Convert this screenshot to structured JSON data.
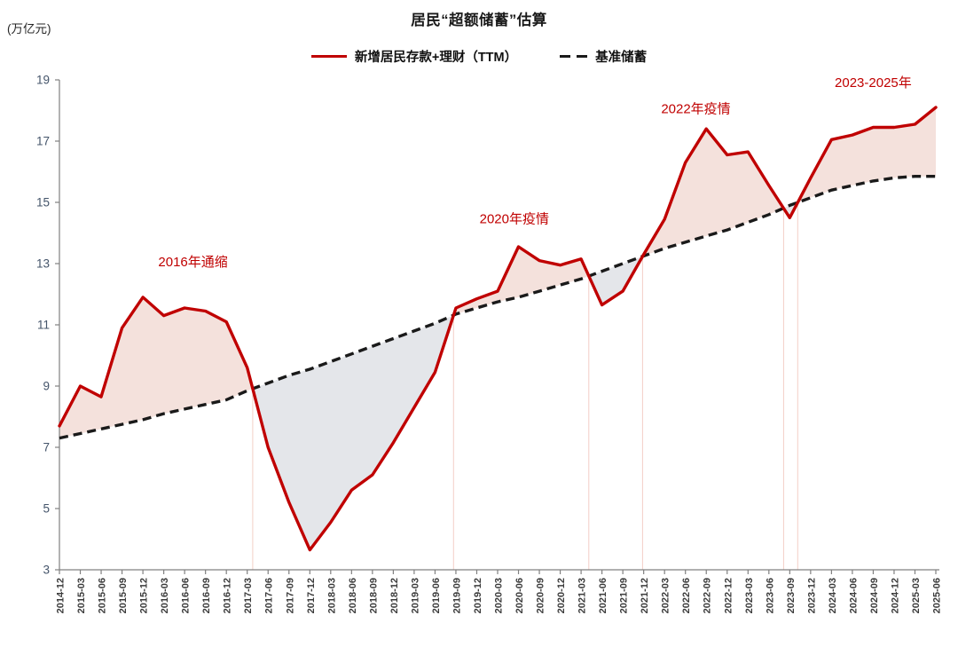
{
  "header": {
    "unit_label": "(万亿元)",
    "title": "居民“超额储蓄”估算"
  },
  "legend": [
    {
      "label": "新增居民存款+理财（TTM）",
      "swatch": "solid-red-line"
    },
    {
      "label": "基准储蓄",
      "swatch": "dashed-black-line"
    }
  ],
  "chart_data": {
    "type": "line",
    "title": "居民“超额储蓄”估算",
    "unit_label": "(万亿元)",
    "ylim": [
      3,
      19
    ],
    "yticks": [
      3,
      5,
      7,
      9,
      11,
      13,
      15,
      17,
      19
    ],
    "grid": false,
    "legend_position": "top",
    "categories": [
      "2014-12",
      "2015-03",
      "2015-06",
      "2015-09",
      "2015-12",
      "2016-03",
      "2016-06",
      "2016-09",
      "2016-12",
      "2017-03",
      "2017-06",
      "2017-09",
      "2017-12",
      "2018-03",
      "2018-06",
      "2018-09",
      "2018-12",
      "2019-03",
      "2019-06",
      "2019-09",
      "2019-12",
      "2020-03",
      "2020-06",
      "2020-09",
      "2020-12",
      "2021-03",
      "2021-06",
      "2021-09",
      "2021-12",
      "2022-03",
      "2022-06",
      "2022-09",
      "2022-12",
      "2023-03",
      "2023-06",
      "2023-09",
      "2023-12",
      "2024-03",
      "2024-06",
      "2024-09",
      "2024-12",
      "2025-03",
      "2025-06"
    ],
    "series": [
      {
        "name": "新增居民存款+理财（TTM）",
        "color": "#c00000",
        "style": "solid",
        "values": [
          7.7,
          9.0,
          8.65,
          10.9,
          11.9,
          11.3,
          11.55,
          11.45,
          11.1,
          9.6,
          7.0,
          5.2,
          3.65,
          4.55,
          5.6,
          6.1,
          7.15,
          8.3,
          9.45,
          11.55,
          11.85,
          12.1,
          13.55,
          13.1,
          12.95,
          13.15,
          11.65,
          12.1,
          13.3,
          14.45,
          16.3,
          17.4,
          16.55,
          16.65,
          15.55,
          14.5,
          15.8,
          17.05,
          17.2,
          17.45,
          17.45,
          17.55,
          18.1
        ]
      },
      {
        "name": "基准储蓄",
        "color": "#1a1a1a",
        "style": "dashed",
        "values": [
          7.3,
          7.45,
          7.6,
          7.75,
          7.9,
          8.1,
          8.25,
          8.4,
          8.55,
          8.85,
          9.1,
          9.35,
          9.55,
          9.8,
          10.05,
          10.3,
          10.55,
          10.8,
          11.05,
          11.35,
          11.55,
          11.75,
          11.9,
          12.1,
          12.3,
          12.5,
          12.75,
          13.0,
          13.25,
          13.5,
          13.7,
          13.9,
          14.1,
          14.35,
          14.6,
          14.9,
          15.15,
          15.4,
          15.55,
          15.7,
          15.8,
          15.85,
          15.85
        ]
      }
    ],
    "fills": {
      "excess_above_color": "#f4e1dc",
      "deficit_below_color": "#e4e6ea",
      "boundary_line_color": "#f3cec6"
    },
    "annotations": [
      {
        "label": "2016年通缩",
        "x_index": 6.4,
        "y_value": 13.05
      },
      {
        "label": "2020年疫情",
        "x_index": 21.8,
        "y_value": 14.45
      },
      {
        "label": "2022年疫情",
        "x_index": 30.5,
        "y_value": 18.05
      },
      {
        "label": "2023-2025年",
        "x_index": 39.0,
        "y_value": 18.9
      }
    ],
    "annotation_color": "#c00000",
    "axis_color": "#808080",
    "y_tick_label_color": "#44546a",
    "x_tick_label_color": "#3b3b3b"
  }
}
